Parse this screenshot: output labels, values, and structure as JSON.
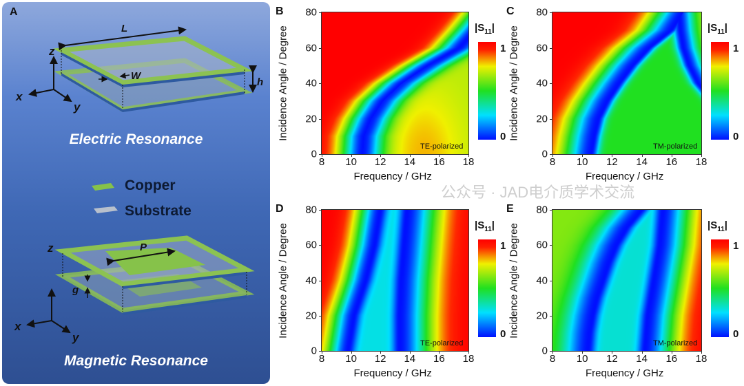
{
  "panel_a": {
    "label": "A",
    "electric_caption": "Electric Resonance",
    "magnetic_caption": "Magnetic Resonance",
    "legend": [
      {
        "label": "Copper",
        "color": "#7fbf4a"
      },
      {
        "label": "Substrate",
        "color": "#b8c0cc"
      }
    ],
    "dims": {
      "L": "L",
      "W": "W",
      "h": "h",
      "P": "P",
      "g": "g"
    },
    "axes": {
      "x": "x",
      "y": "y",
      "z": "z"
    }
  },
  "watermark": "公众号 · JAD电介质学术交流",
  "chart_data": [
    {
      "type": "heatmap",
      "label": "B",
      "polarization": "TE-polarized",
      "xlabel": "Frequency / GHz",
      "ylabel": "Incidence Angle / Degree",
      "xlim": [
        8,
        18
      ],
      "ylim": [
        0,
        80
      ],
      "xticks": [
        "8",
        "10",
        "12",
        "14",
        "16",
        "18"
      ],
      "yticks": [
        "0",
        "20",
        "40",
        "60",
        "80"
      ],
      "colorbar": {
        "title_main": "S",
        "title_sub": "11",
        "max": "1",
        "min": "0"
      },
      "resonances": [
        {
          "angles": [
            0,
            10,
            20,
            30,
            40,
            50,
            60,
            70,
            80
          ],
          "freq": [
            10.8,
            10.9,
            11.4,
            12.2,
            13.5,
            15.3,
            17.4,
            18.5,
            19.5
          ]
        }
      ],
      "left_level": 1.0,
      "right_level": 0.68,
      "left_width": 1.6,
      "right_width": 1.3
    },
    {
      "type": "heatmap",
      "label": "C",
      "polarization": "TM-polarized",
      "xlabel": "Frequency / GHz",
      "ylabel": "Incidence Angle / Degree",
      "xlim": [
        8,
        18
      ],
      "ylim": [
        0,
        80
      ],
      "xticks": [
        "8",
        "10",
        "12",
        "14",
        "16",
        "18"
      ],
      "yticks": [
        "0",
        "20",
        "40",
        "60",
        "80"
      ],
      "colorbar": {
        "title_main": "S",
        "title_sub": "11",
        "max": "1",
        "min": "0"
      },
      "resonances": [
        {
          "angles": [
            0,
            10,
            20,
            30,
            40,
            50,
            60,
            70,
            80
          ],
          "freq": [
            10.6,
            10.8,
            11.1,
            11.7,
            12.5,
            13.4,
            14.5,
            16.0,
            16.8
          ]
        },
        {
          "angles": [
            0,
            10,
            20,
            30,
            40,
            50,
            60,
            70,
            80
          ],
          "freq": [
            19.5,
            19.5,
            19.5,
            18.8,
            17.8,
            17.2,
            16.8,
            16.6,
            16.5
          ]
        }
      ],
      "left_level": 1.0,
      "right_level": 0.68,
      "mid_level": 0.5,
      "left_width": 2.0,
      "right_width": 1.0
    },
    {
      "type": "heatmap",
      "label": "D",
      "polarization": "TE-polarized",
      "xlabel": "Frequency / GHz",
      "ylabel": "Incidence Angle / Degree",
      "xlim": [
        8,
        18
      ],
      "ylim": [
        0,
        80
      ],
      "xticks": [
        "8",
        "10",
        "12",
        "14",
        "16",
        "18"
      ],
      "yticks": [
        "0",
        "20",
        "40",
        "60",
        "80"
      ],
      "colorbar": {
        "title_main": "S",
        "title_sub": "11",
        "max": "1",
        "min": "0"
      },
      "resonances": [
        {
          "angles": [
            0,
            10,
            20,
            30,
            40,
            50,
            60,
            70,
            80
          ],
          "freq": [
            9.8,
            10.0,
            10.2,
            10.6,
            11.0,
            11.3,
            11.6,
            11.8,
            12.0
          ]
        },
        {
          "angles": [
            0,
            10,
            20,
            30,
            40,
            50,
            60,
            70,
            80
          ],
          "freq": [
            13.3,
            13.3,
            13.3,
            13.35,
            13.4,
            13.5,
            13.6,
            13.7,
            13.8
          ]
        }
      ],
      "left_level": 1.0,
      "right_level": 1.0,
      "mid_level": 0.28,
      "left_width": 1.5,
      "right_width": 2.2
    },
    {
      "type": "heatmap",
      "label": "E",
      "polarization": "TM-polarized",
      "xlabel": "Frequency / GHz",
      "ylabel": "Incidence Angle / Degree",
      "xlim": [
        8,
        18
      ],
      "ylim": [
        0,
        80
      ],
      "xticks": [
        "8",
        "10",
        "12",
        "14",
        "16",
        "18"
      ],
      "yticks": [
        "0",
        "20",
        "40",
        "60",
        "80"
      ],
      "colorbar": {
        "title_main": "S",
        "title_sub": "11",
        "max": "1",
        "min": "0"
      },
      "resonances": [
        {
          "angles": [
            0,
            10,
            20,
            30,
            40,
            50,
            60,
            70,
            80
          ],
          "freq": [
            10.4,
            10.5,
            10.7,
            11.0,
            11.4,
            11.8,
            12.3,
            13.0,
            14.0
          ]
        },
        {
          "angles": [
            0,
            10,
            20,
            30,
            40,
            50,
            60,
            70,
            80
          ],
          "freq": [
            14.2,
            14.3,
            14.4,
            14.6,
            14.8,
            15.0,
            15.2,
            15.3,
            15.4
          ]
        }
      ],
      "left_level": 0.62,
      "right_level": 1.0,
      "mid_level": 0.3,
      "left_width": 1.8,
      "right_width": 2.0
    }
  ]
}
